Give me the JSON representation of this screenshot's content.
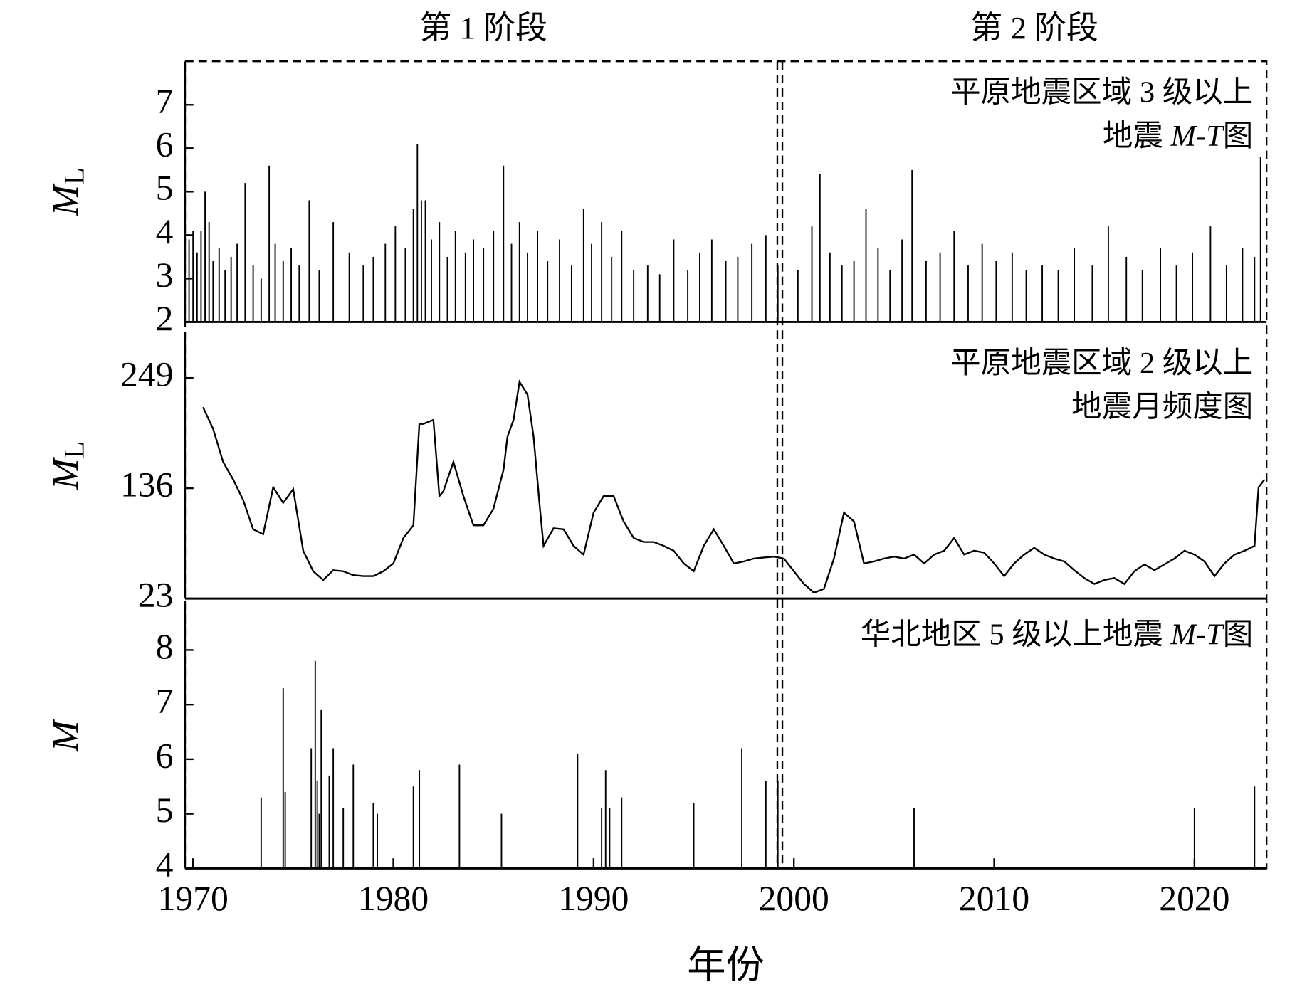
{
  "phases": {
    "labels": [
      "第 1 阶段",
      "第 2 阶段"
    ],
    "boundary": 1999.3
  },
  "chart_data": [
    {
      "type": "stem",
      "ylabel": "M",
      "ylabel_sub": "L",
      "color": "#000000",
      "annotation": [
        [
          {
            "text": "平原地震区域 3 级以上"
          }
        ],
        [
          {
            "text": "地震 "
          },
          {
            "text": "M-T",
            "italic": true
          },
          {
            "text": "图"
          }
        ]
      ],
      "xlim": [
        1969.6,
        2023.6
      ],
      "ylim": [
        2,
        8
      ],
      "yticks": [
        2,
        3,
        4,
        5,
        6,
        7
      ],
      "x": [
        1969.8,
        1970.0,
        1970.2,
        1970.4,
        1970.6,
        1970.8,
        1971.0,
        1971.3,
        1971.6,
        1971.9,
        1972.2,
        1972.6,
        1973.0,
        1973.4,
        1973.8,
        1974.1,
        1974.5,
        1974.9,
        1975.3,
        1975.8,
        1976.3,
        1977.0,
        1977.8,
        1978.5,
        1979.0,
        1979.6,
        1980.1,
        1980.6,
        1981.0,
        1981.2,
        1981.4,
        1981.6,
        1981.9,
        1982.3,
        1982.7,
        1983.1,
        1983.6,
        1984.0,
        1984.5,
        1985.0,
        1985.5,
        1985.9,
        1986.3,
        1986.7,
        1987.2,
        1987.7,
        1988.3,
        1988.9,
        1989.5,
        1989.9,
        1990.4,
        1990.9,
        1991.4,
        1992.0,
        1992.7,
        1993.3,
        1994.0,
        1994.7,
        1995.3,
        1995.9,
        1996.6,
        1997.2,
        1997.9,
        1998.6,
        1999.2,
        2000.2,
        2000.9,
        2001.3,
        2001.8,
        2002.4,
        2003.0,
        2003.6,
        2004.2,
        2004.8,
        2005.4,
        2005.9,
        2006.6,
        2007.3,
        2008.0,
        2008.7,
        2009.4,
        2010.1,
        2010.9,
        2011.6,
        2012.4,
        2013.2,
        2014.0,
        2014.9,
        2015.7,
        2016.6,
        2017.4,
        2018.3,
        2019.1,
        2019.9,
        2020.8,
        2021.6,
        2022.4,
        2023.0,
        2023.3
      ],
      "values": [
        3.9,
        4.1,
        3.6,
        4.1,
        5.0,
        4.3,
        3.4,
        3.7,
        3.2,
        3.5,
        3.8,
        5.2,
        3.3,
        3.0,
        5.6,
        3.8,
        3.4,
        3.7,
        3.3,
        4.8,
        3.2,
        4.3,
        3.6,
        3.3,
        3.5,
        3.8,
        4.2,
        3.7,
        4.6,
        6.1,
        4.8,
        4.8,
        3.9,
        4.3,
        3.5,
        4.1,
        3.6,
        3.9,
        3.7,
        4.1,
        5.6,
        3.8,
        4.3,
        3.6,
        4.1,
        3.4,
        3.9,
        3.3,
        4.6,
        3.8,
        4.3,
        3.5,
        4.1,
        3.2,
        3.3,
        3.1,
        3.9,
        3.2,
        3.6,
        3.9,
        3.4,
        3.5,
        3.8,
        4.0,
        3.3,
        3.2,
        4.2,
        5.4,
        3.6,
        3.3,
        3.4,
        4.6,
        3.7,
        3.2,
        3.9,
        5.5,
        3.4,
        3.6,
        4.1,
        3.3,
        3.8,
        3.4,
        3.6,
        3.2,
        3.3,
        3.2,
        3.7,
        3.3,
        4.2,
        3.5,
        3.2,
        3.7,
        3.3,
        3.6,
        4.2,
        3.3,
        3.7,
        3.5,
        5.8
      ]
    },
    {
      "type": "line",
      "ylabel": "M",
      "ylabel_sub": "L",
      "color": "#000000",
      "annotation": [
        [
          {
            "text": "平原地震区域 2 级以上"
          }
        ],
        [
          {
            "text": "地震月频度图"
          }
        ]
      ],
      "xlim": [
        1969.6,
        2023.6
      ],
      "ylim": [
        23,
        296
      ],
      "yticks": [
        23,
        136,
        249
      ],
      "x": [
        1970.5,
        1971.0,
        1971.5,
        1972.0,
        1972.5,
        1973.0,
        1973.5,
        1974.0,
        1974.5,
        1975.0,
        1975.5,
        1976.0,
        1976.5,
        1977.0,
        1977.5,
        1978.0,
        1978.5,
        1979.0,
        1979.5,
        1980.0,
        1980.5,
        1981.0,
        1981.3,
        1981.5,
        1982.0,
        1982.3,
        1982.5,
        1983.0,
        1983.5,
        1984.0,
        1984.5,
        1985.0,
        1985.5,
        1985.7,
        1986.0,
        1986.3,
        1986.7,
        1987.0,
        1987.3,
        1987.5,
        1988.0,
        1988.5,
        1989.0,
        1989.5,
        1990.0,
        1990.5,
        1991.0,
        1991.5,
        1992.0,
        1992.5,
        1993.0,
        1993.5,
        1994.0,
        1994.5,
        1995.0,
        1995.5,
        1996.0,
        1996.5,
        1997.0,
        1997.5,
        1998.0,
        1998.5,
        1999.0,
        1999.5,
        2000.0,
        2000.5,
        2001.0,
        2001.5,
        2002.0,
        2002.5,
        2003.0,
        2003.5,
        2004.0,
        2004.5,
        2005.0,
        2005.5,
        2006.0,
        2006.5,
        2007.0,
        2007.5,
        2008.0,
        2008.5,
        2009.0,
        2009.5,
        2010.0,
        2010.5,
        2011.0,
        2011.5,
        2012.0,
        2012.5,
        2013.0,
        2013.5,
        2014.0,
        2014.5,
        2015.0,
        2015.5,
        2016.0,
        2016.5,
        2017.0,
        2017.5,
        2018.0,
        2018.5,
        2019.0,
        2019.5,
        2020.0,
        2020.5,
        2021.0,
        2021.5,
        2022.0,
        2022.5,
        2023.0,
        2023.2,
        2023.5
      ],
      "values": [
        219,
        197,
        163,
        145,
        124,
        94,
        89,
        137,
        121,
        135,
        72,
        51,
        42,
        52,
        51,
        47,
        46,
        46,
        51,
        59,
        85,
        98,
        202,
        202,
        206,
        128,
        133,
        163,
        128,
        98,
        98,
        115,
        155,
        189,
        206,
        245,
        232,
        189,
        120,
        77,
        95,
        94,
        77,
        68,
        111,
        128,
        128,
        102,
        85,
        81,
        81,
        77,
        72,
        59,
        51,
        77,
        94,
        77,
        59,
        61,
        64,
        65,
        66,
        64,
        51,
        38,
        29,
        33,
        64,
        111,
        102,
        59,
        61,
        64,
        66,
        64,
        68,
        59,
        68,
        72,
        85,
        68,
        72,
        70,
        59,
        46,
        59,
        68,
        75,
        68,
        64,
        61,
        52,
        44,
        38,
        42,
        44,
        38,
        51,
        58,
        52,
        58,
        64,
        72,
        68,
        61,
        46,
        59,
        68,
        72,
        77,
        137,
        145
      ]
    },
    {
      "type": "stem",
      "ylabel": "M",
      "color": "#000000",
      "annotation": [
        [
          {
            "text": "华北地区 5 级以上地震 "
          },
          {
            "text": "M-T",
            "italic": true
          },
          {
            "text": "图"
          }
        ]
      ],
      "xlim": [
        1969.6,
        2023.6
      ],
      "ylim": [
        4,
        8.85
      ],
      "yticks": [
        4,
        5,
        6,
        7,
        8
      ],
      "xticks": [
        1970,
        1980,
        1990,
        2000,
        2010,
        2020
      ],
      "xlabel": "年份",
      "x": [
        1973.4,
        1974.5,
        1974.6,
        1975.9,
        1976.1,
        1976.2,
        1976.3,
        1976.4,
        1976.8,
        1977.0,
        1977.5,
        1978.0,
        1979.0,
        1979.2,
        1981.0,
        1981.3,
        1983.3,
        1985.4,
        1989.2,
        1990.4,
        1990.6,
        1990.8,
        1991.4,
        1995.0,
        1997.4,
        1998.6,
        1999.2,
        2006.0,
        2020.0,
        2023.0
      ],
      "values": [
        5.3,
        7.3,
        5.4,
        6.2,
        7.8,
        5.6,
        5.0,
        6.9,
        5.7,
        6.2,
        5.1,
        5.9,
        5.2,
        5.0,
        5.5,
        5.8,
        5.9,
        5.0,
        6.1,
        5.1,
        5.8,
        5.1,
        5.3,
        5.2,
        6.2,
        5.6,
        5.6,
        5.1,
        5.1,
        5.5
      ]
    }
  ]
}
